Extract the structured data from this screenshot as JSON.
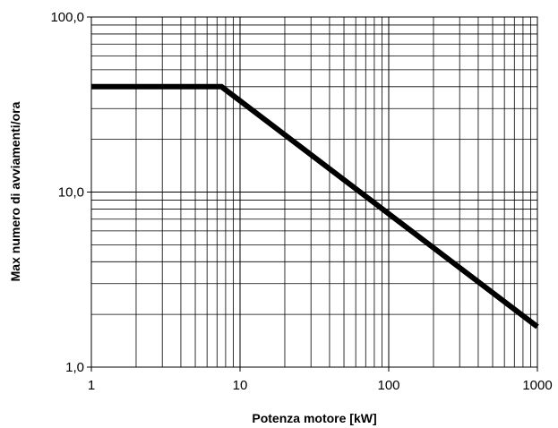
{
  "chart_data": {
    "type": "line",
    "title": "",
    "xlabel": "Potenza motore [kW]",
    "ylabel": "Max numero di avviamenti/ora",
    "xscale": "log",
    "yscale": "log",
    "xlim": [
      1,
      1000
    ],
    "ylim": [
      1,
      100
    ],
    "grid": true,
    "legend": "none",
    "x_ticks": [
      {
        "value": 1,
        "label": "1"
      },
      {
        "value": 10,
        "label": "10"
      },
      {
        "value": 100,
        "label": "100"
      },
      {
        "value": 1000,
        "label": "1000"
      }
    ],
    "y_ticks": [
      {
        "value": 1,
        "label": "1,0"
      },
      {
        "value": 10,
        "label": "10,0"
      },
      {
        "value": 100,
        "label": "100,0"
      }
    ],
    "series": [
      {
        "color": "#000000",
        "x": [
          1,
          7.5,
          1000
        ],
        "y": [
          40,
          40,
          1.7
        ]
      }
    ]
  }
}
